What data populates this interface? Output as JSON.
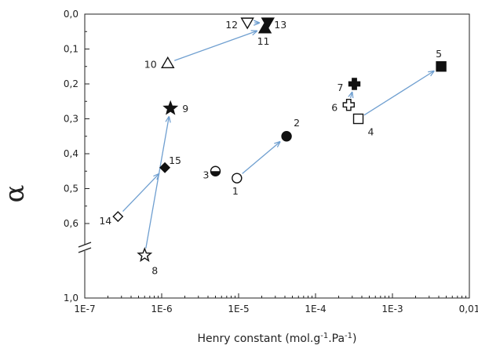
{
  "chart_data": {
    "type": "scatter",
    "title": "",
    "xlabel": "Henry constant (mol.g⁻¹.Pa⁻¹)",
    "ylabel": "α",
    "x_scale": "log",
    "y_axis_inverted": true,
    "y_axis_break": "between 0,6 and 1,0",
    "xlim": [
      1e-07,
      0.01
    ],
    "ylim": [
      0.0,
      1.0
    ],
    "x_ticks": [
      {
        "value": 1e-07,
        "label": "1E-7"
      },
      {
        "value": 1e-06,
        "label": "1E-6"
      },
      {
        "value": 1e-05,
        "label": "1E-5"
      },
      {
        "value": 0.0001,
        "label": "1E-4"
      },
      {
        "value": 0.001,
        "label": "1E-3"
      },
      {
        "value": 0.01,
        "label": "0,01"
      }
    ],
    "y_ticks": [
      {
        "value": 0.0,
        "label": "0,0"
      },
      {
        "value": 0.1,
        "label": "0,1"
      },
      {
        "value": 0.2,
        "label": "0,2"
      },
      {
        "value": 0.3,
        "label": "0,3"
      },
      {
        "value": 0.4,
        "label": "0,4"
      },
      {
        "value": 0.5,
        "label": "0,5"
      },
      {
        "value": 0.6,
        "label": "0,6"
      },
      {
        "value": 1.0,
        "label": "1,0"
      }
    ],
    "points": [
      {
        "label": "1",
        "x": 9.5e-06,
        "y": 0.47,
        "marker": "circle-open"
      },
      {
        "label": "2",
        "x": 4.2e-05,
        "y": 0.35,
        "marker": "circle-filled"
      },
      {
        "label": "3",
        "x": 5e-06,
        "y": 0.45,
        "marker": "circle-half"
      },
      {
        "label": "4",
        "x": 0.00036,
        "y": 0.3,
        "marker": "square-open"
      },
      {
        "label": "5",
        "x": 0.0043,
        "y": 0.15,
        "marker": "square-filled"
      },
      {
        "label": "6",
        "x": 0.00027,
        "y": 0.26,
        "marker": "cross-open"
      },
      {
        "label": "7",
        "x": 0.00032,
        "y": 0.2,
        "marker": "cross-filled"
      },
      {
        "label": "8",
        "x": 6e-07,
        "y": 0.85,
        "marker": "star-open"
      },
      {
        "label": "9",
        "x": 1.3e-06,
        "y": 0.27,
        "marker": "star-filled"
      },
      {
        "label": "10",
        "x": 1.2e-06,
        "y": 0.14,
        "marker": "triangle-up-open"
      },
      {
        "label": "11",
        "x": 2.2e-05,
        "y": 0.04,
        "marker": "triangle-up-filled"
      },
      {
        "label": "12",
        "x": 1.3e-05,
        "y": 0.025,
        "marker": "triangle-down-open"
      },
      {
        "label": "13",
        "x": 2.4e-05,
        "y": 0.025,
        "marker": "triangle-down-filled"
      },
      {
        "label": "14",
        "x": 2.7e-07,
        "y": 0.58,
        "marker": "diamond-open"
      },
      {
        "label": "15",
        "x": 1.1e-06,
        "y": 0.44,
        "marker": "diamond-filled"
      }
    ],
    "arrows": [
      {
        "from": "1",
        "to": "2"
      },
      {
        "from": "4",
        "to": "5"
      },
      {
        "from": "6",
        "to": "7"
      },
      {
        "from": "8",
        "to": "9"
      },
      {
        "from": "10",
        "to": "11"
      },
      {
        "from": "12",
        "to": "13"
      },
      {
        "from": "14",
        "to": "15"
      }
    ],
    "colors": {
      "arrow": "#6f9fd0",
      "marker": "#111111",
      "axis": "#222222"
    }
  }
}
